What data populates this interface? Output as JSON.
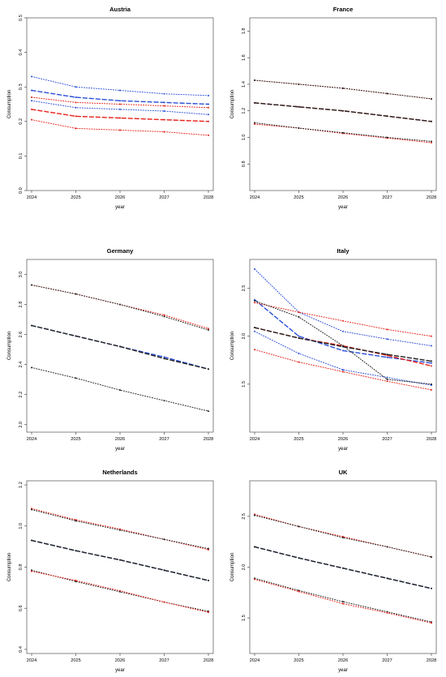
{
  "colors": {
    "red": "#e8221b",
    "blue": "#2b4fd8",
    "dark": "#222222",
    "axis": "#333333"
  },
  "chart_data": [
    {
      "type": "line",
      "title": "Austria",
      "xlabel": "year",
      "ylabel": "Consumption",
      "x": [
        "2024",
        "2025",
        "2026",
        "2027",
        "2028"
      ],
      "xlim": [
        2024,
        2028
      ],
      "ylim": [
        0,
        0.5
      ],
      "yticks": [
        "0.0",
        "0.1",
        "0.2",
        "0.3",
        "0.4",
        "0.5"
      ],
      "series": [
        {
          "color": "blue",
          "style": "dotted",
          "values": [
            0.33,
            0.3,
            0.29,
            0.28,
            0.275
          ]
        },
        {
          "color": "blue",
          "style": "dashed",
          "values": [
            0.29,
            0.27,
            0.26,
            0.255,
            0.25
          ]
        },
        {
          "color": "blue",
          "style": "dotted",
          "values": [
            0.26,
            0.24,
            0.235,
            0.23,
            0.22
          ]
        },
        {
          "color": "red",
          "style": "dotted",
          "values": [
            0.27,
            0.255,
            0.25,
            0.245,
            0.24
          ]
        },
        {
          "color": "red",
          "style": "dashed",
          "values": [
            0.235,
            0.215,
            0.21,
            0.205,
            0.2
          ]
        },
        {
          "color": "red",
          "style": "dotted",
          "values": [
            0.205,
            0.18,
            0.175,
            0.17,
            0.16
          ]
        }
      ]
    },
    {
      "type": "line",
      "title": "France",
      "xlabel": "year",
      "ylabel": "Consumption",
      "x": [
        "2024",
        "2025",
        "2026",
        "2027",
        "2028"
      ],
      "xlim": [
        2024,
        2028
      ],
      "ylim": [
        0.6,
        1.9
      ],
      "yticks": [
        "0.8",
        "1.0",
        "1.2",
        "1.4",
        "1.6",
        "1.8"
      ],
      "series": [
        {
          "color": "red",
          "style": "dotted",
          "values": [
            1.43,
            1.4,
            1.37,
            1.33,
            1.29
          ]
        },
        {
          "color": "red",
          "style": "dashed",
          "values": [
            1.26,
            1.23,
            1.2,
            1.16,
            1.12
          ]
        },
        {
          "color": "red",
          "style": "dotted",
          "values": [
            1.1,
            1.07,
            1.03,
            0.995,
            0.96
          ]
        },
        {
          "color": "dark",
          "style": "dotted",
          "values": [
            1.43,
            1.4,
            1.37,
            1.33,
            1.29
          ]
        },
        {
          "color": "dark",
          "style": "dashed",
          "values": [
            1.26,
            1.23,
            1.2,
            1.16,
            1.12
          ]
        },
        {
          "color": "dark",
          "style": "dotted",
          "values": [
            1.11,
            1.07,
            1.035,
            1.0,
            0.97
          ]
        }
      ]
    },
    {
      "type": "line",
      "title": "Germany",
      "xlabel": "year",
      "ylabel": "Consumption",
      "x": [
        "2024",
        "2025",
        "2026",
        "2027",
        "2028"
      ],
      "xlim": [
        2024,
        2028
      ],
      "ylim": [
        1.95,
        3.1
      ],
      "yticks": [
        "2.0",
        "2.2",
        "2.4",
        "2.6",
        "2.8",
        "3.0"
      ],
      "series": [
        {
          "color": "red",
          "style": "dotted",
          "values": [
            2.93,
            2.87,
            2.8,
            2.73,
            2.64
          ]
        },
        {
          "color": "dark",
          "style": "dotted",
          "values": [
            2.93,
            2.87,
            2.8,
            2.72,
            2.63
          ]
        },
        {
          "color": "blue",
          "style": "dashed",
          "values": [
            2.66,
            2.59,
            2.52,
            2.45,
            2.37
          ]
        },
        {
          "color": "dark",
          "style": "dashed",
          "values": [
            2.66,
            2.59,
            2.52,
            2.44,
            2.37
          ]
        },
        {
          "color": "dark",
          "style": "dotted",
          "values": [
            2.38,
            2.31,
            2.23,
            2.16,
            2.09
          ]
        }
      ]
    },
    {
      "type": "line",
      "title": "Italy",
      "xlabel": "year",
      "ylabel": "Consumption",
      "x": [
        "2024",
        "2025",
        "2026",
        "2027",
        "2028"
      ],
      "xlim": [
        2024,
        2028
      ],
      "ylim": [
        1.0,
        2.8
      ],
      "yticks": [
        "1.5",
        "2.0",
        "2.5"
      ],
      "series": [
        {
          "color": "blue",
          "style": "dotted",
          "values": [
            2.7,
            2.25,
            2.05,
            1.97,
            1.9
          ]
        },
        {
          "color": "blue",
          "style": "dashed",
          "values": [
            2.38,
            2.0,
            1.85,
            1.78,
            1.72
          ]
        },
        {
          "color": "blue",
          "style": "dotted",
          "values": [
            2.05,
            1.82,
            1.65,
            1.57,
            1.49
          ]
        },
        {
          "color": "red",
          "style": "dotted",
          "values": [
            2.35,
            2.25,
            2.16,
            2.07,
            2.0
          ]
        },
        {
          "color": "red",
          "style": "dashed",
          "values": [
            2.09,
            1.98,
            1.9,
            1.8,
            1.69
          ]
        },
        {
          "color": "red",
          "style": "dotted",
          "values": [
            1.86,
            1.73,
            1.63,
            1.53,
            1.44
          ]
        },
        {
          "color": "dark",
          "style": "dashed",
          "values": [
            2.09,
            1.98,
            1.89,
            1.81,
            1.74
          ]
        },
        {
          "color": "dark",
          "style": "dotted",
          "values": [
            2.37,
            2.2,
            1.9,
            1.55,
            1.5
          ]
        }
      ]
    },
    {
      "type": "line",
      "title": "Netherlands",
      "xlabel": "year",
      "ylabel": "Consumption",
      "x": [
        "2024",
        "2025",
        "2026",
        "2027",
        "2028"
      ],
      "xlim": [
        2024,
        2028
      ],
      "ylim": [
        0.38,
        1.22
      ],
      "yticks": [
        "0.4",
        "0.6",
        "0.8",
        "1.0",
        "1.2"
      ],
      "series": [
        {
          "color": "red",
          "style": "dotted",
          "values": [
            1.085,
            1.03,
            0.985,
            0.935,
            0.885
          ]
        },
        {
          "color": "dark",
          "style": "dotted",
          "values": [
            1.08,
            1.025,
            0.98,
            0.935,
            0.89
          ]
        },
        {
          "color": "blue",
          "style": "dashed",
          "values": [
            0.93,
            0.88,
            0.835,
            0.785,
            0.735
          ]
        },
        {
          "color": "dark",
          "style": "dashed",
          "values": [
            0.93,
            0.88,
            0.835,
            0.785,
            0.735
          ]
        },
        {
          "color": "dark",
          "style": "dotted",
          "values": [
            0.785,
            0.73,
            0.68,
            0.63,
            0.585
          ]
        },
        {
          "color": "red",
          "style": "dotted",
          "values": [
            0.78,
            0.735,
            0.685,
            0.63,
            0.58
          ]
        }
      ]
    },
    {
      "type": "line",
      "title": "UK",
      "xlabel": "year",
      "ylabel": "Consumption",
      "x": [
        "2024",
        "2025",
        "2026",
        "2027",
        "2028"
      ],
      "xlim": [
        2024,
        2028
      ],
      "ylim": [
        1.15,
        2.85
      ],
      "yticks": [
        "1.5",
        "2.0",
        "2.5"
      ],
      "series": [
        {
          "color": "red",
          "style": "dotted",
          "values": [
            2.52,
            2.4,
            2.3,
            2.2,
            2.1
          ]
        },
        {
          "color": "dark",
          "style": "dotted",
          "values": [
            2.51,
            2.4,
            2.29,
            2.2,
            2.1
          ]
        },
        {
          "color": "blue",
          "style": "dashed",
          "values": [
            2.2,
            2.09,
            1.99,
            1.89,
            1.79
          ]
        },
        {
          "color": "dark",
          "style": "dashed",
          "values": [
            2.2,
            2.09,
            1.99,
            1.89,
            1.79
          ]
        },
        {
          "color": "dark",
          "style": "dotted",
          "values": [
            1.89,
            1.77,
            1.66,
            1.56,
            1.46
          ]
        },
        {
          "color": "red",
          "style": "dotted",
          "values": [
            1.88,
            1.76,
            1.64,
            1.55,
            1.45
          ]
        }
      ]
    }
  ]
}
